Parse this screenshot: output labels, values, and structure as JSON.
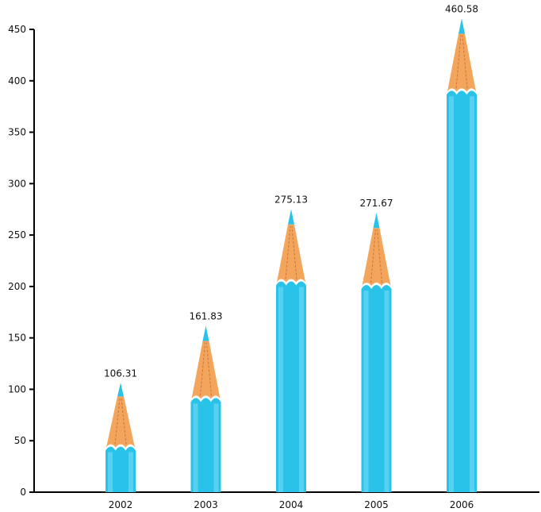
{
  "chart_data": {
    "type": "bar",
    "categories": [
      "2002",
      "2003",
      "2004",
      "2005",
      "2006"
    ],
    "values": [
      106.31,
      161.83,
      275.13,
      271.67,
      460.58
    ],
    "data_labels": [
      "106.31",
      "161.83",
      "275.13",
      "271.67",
      "460.58"
    ],
    "title": "",
    "xlabel": "",
    "ylabel": "",
    "ylim": [
      0,
      450
    ],
    "y_ticks": [
      "0",
      "50",
      "100",
      "150",
      "200",
      "250",
      "300",
      "350",
      "400",
      "450"
    ],
    "grid": false,
    "legend": "none",
    "bar_style": "pencil",
    "colors": {
      "pencil_body": "#29c3ea",
      "pencil_body_light": "#7fdcf4",
      "pencil_wood": "#f3a55c",
      "pencil_lead": "#29c3ea",
      "axis": "#000000"
    }
  }
}
